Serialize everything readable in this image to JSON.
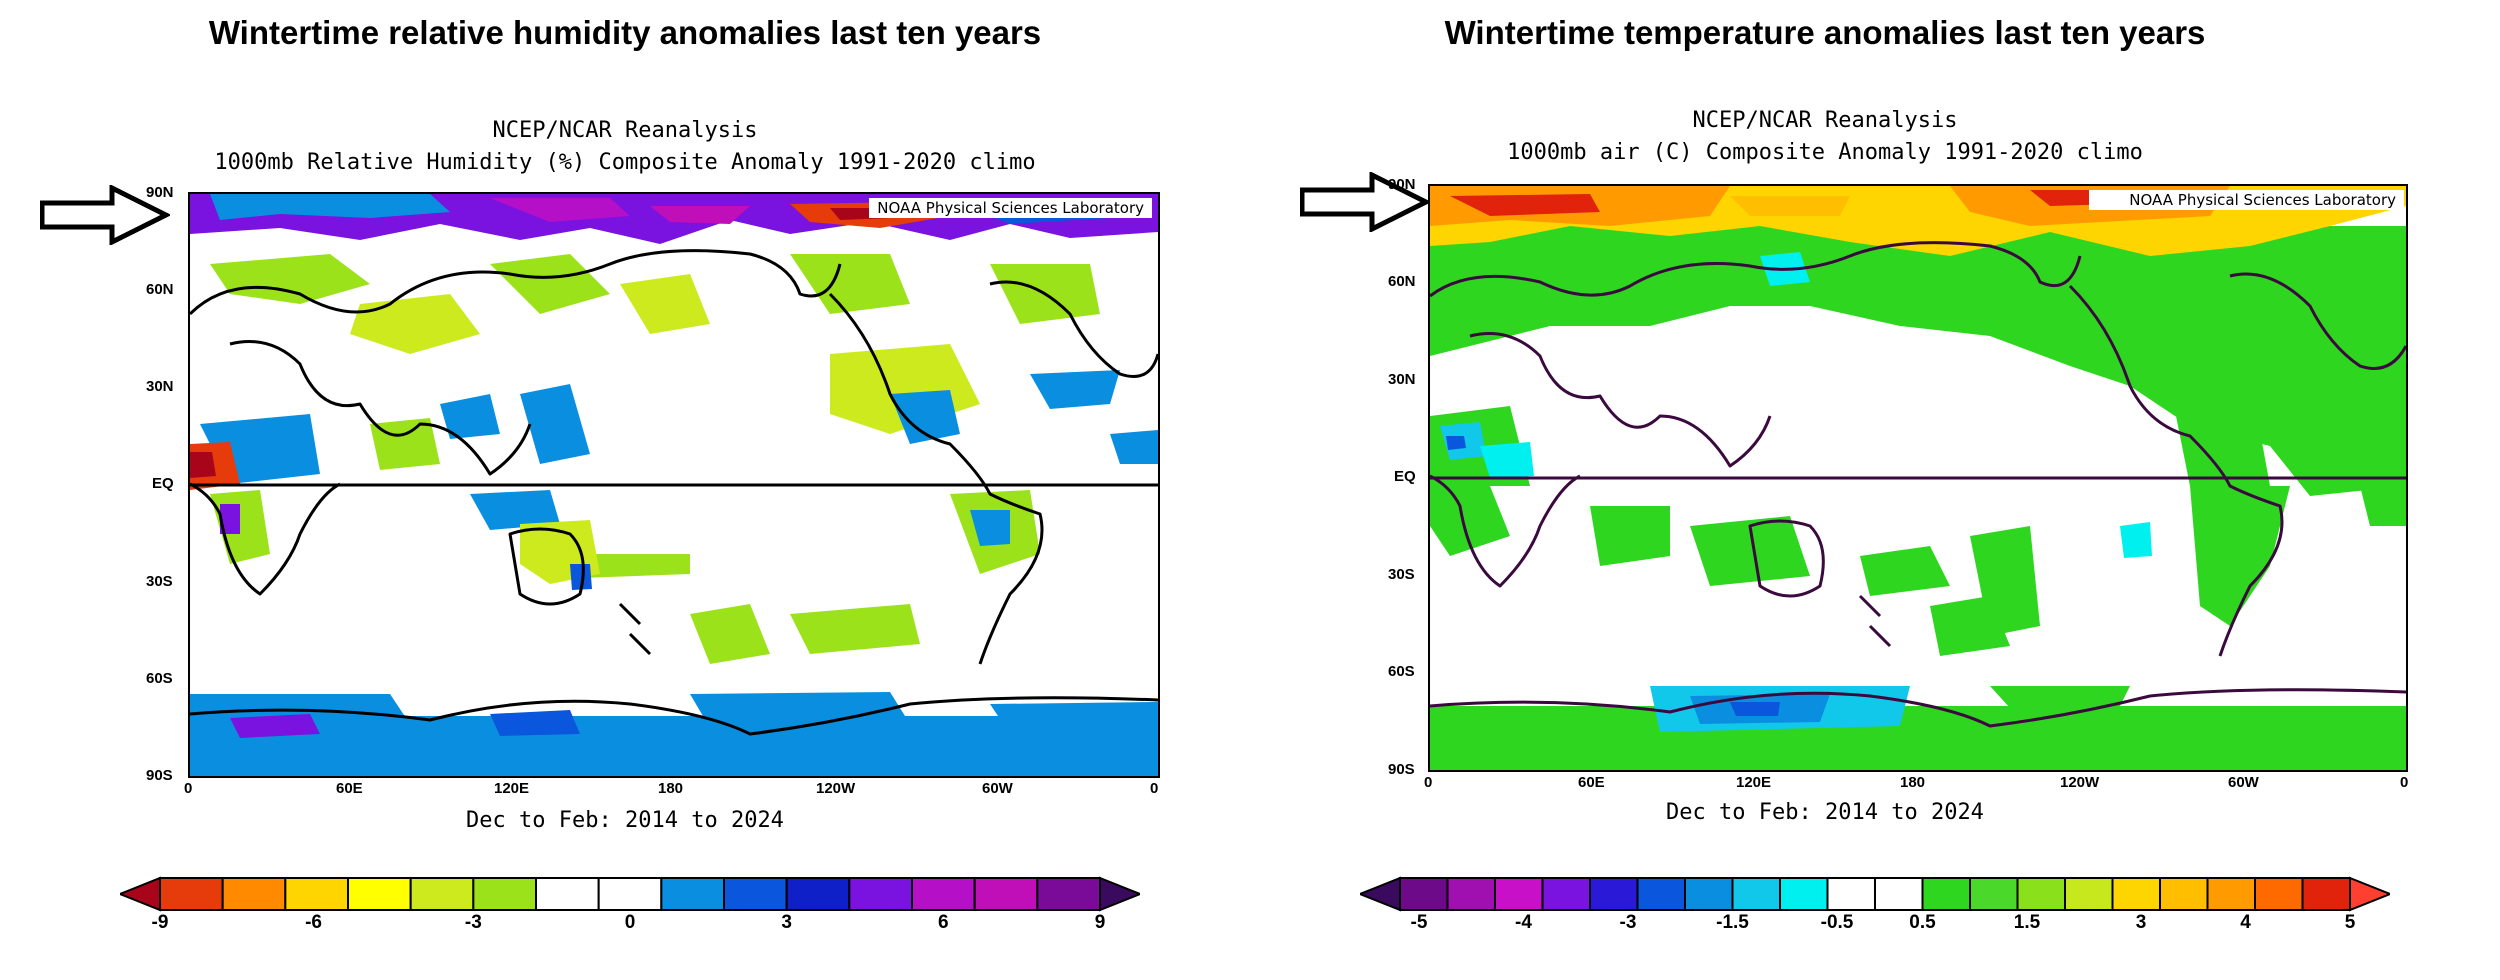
{
  "left": {
    "headline": "Wintertime relative humidity anomalies last ten years",
    "line1": "NCEP/NCAR Reanalysis",
    "line2": "1000mb Relative Humidity (%) Composite Anomaly 1991-2020 climo",
    "tag": "NOAA Physical Sciences Laboratory",
    "period": "Dec to Feb: 2014 to 2024",
    "lat_labels": [
      "90N",
      "60N",
      "30N",
      "EQ",
      "30S",
      "60S",
      "90S"
    ],
    "lon_labels": [
      "0",
      "60E",
      "120E",
      "180",
      "120W",
      "60W",
      "0"
    ],
    "colorbar": {
      "labels": [
        "-9",
        "-6",
        "-3",
        "0",
        "3",
        "6",
        "9"
      ],
      "colors": [
        "#a8051a",
        "#e63b0a",
        "#ff8a00",
        "#ffd500",
        "#ffff00",
        "#ccea1e",
        "#9be21a",
        "#ffffff",
        "#ffffff",
        "#0a8fe0",
        "#0a56dc",
        "#1020c8",
        "#7a12e0",
        "#b50fc8",
        "#c00fb8",
        "#7a0b98",
        "#3a0a5e"
      ]
    },
    "arrow_icon": "arrow-right-icon"
  },
  "right": {
    "headline": "Wintertime temperature anomalies last ten years",
    "line1": "NCEP/NCAR Reanalysis",
    "line2": "1000mb air (C) Composite Anomaly 1991-2020 climo",
    "tag": "NOAA Physical Sciences Laboratory",
    "period": "Dec to Feb: 2014 to 2024",
    "lat_labels": [
      "90N",
      "60N",
      "30N",
      "EQ",
      "30S",
      "60S",
      "90S"
    ],
    "lon_labels": [
      "0",
      "60E",
      "120E",
      "180",
      "120W",
      "60W",
      "0"
    ],
    "colorbar": {
      "labels": [
        "-5",
        "-4",
        "-3",
        "-1.5",
        "-0.5",
        "0.5",
        "1.5",
        "3",
        "4",
        "5"
      ],
      "colors": [
        "#3a0a5e",
        "#6d0a8a",
        "#a00fb0",
        "#c810c8",
        "#7a12e0",
        "#2a1ad8",
        "#0a56dc",
        "#0a8fe0",
        "#12c8ea",
        "#00f0f0",
        "#ffffff",
        "#ffffff",
        "#2ed620",
        "#4ad82a",
        "#8ae01a",
        "#c8e81e",
        "#ffd500",
        "#ffbf00",
        "#ff9a00",
        "#ff6a00",
        "#e0230a",
        "#ff4030"
      ]
    },
    "arrow_icon": "arrow-right-icon"
  }
}
